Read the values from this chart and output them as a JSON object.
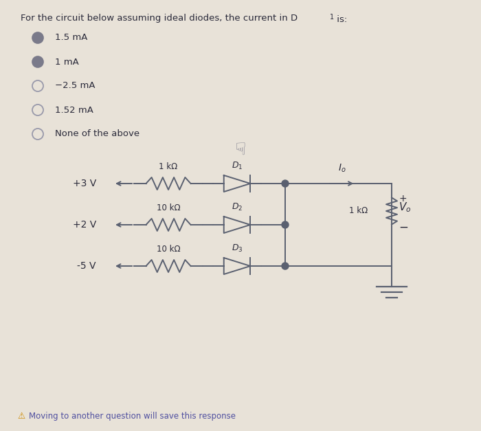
{
  "bg_color": "#e8e2d8",
  "title": "For the circuit below assuming ideal diodes, the current in D",
  "title2": " is:",
  "options": [
    "1.5 mA",
    "1 mA",
    "−2.5 mA",
    "1.52 mA",
    "None of the above"
  ],
  "option_filled": [
    true,
    true,
    false,
    false,
    false
  ],
  "option_colors": [
    "#7a7a8a",
    "#7a7a8a",
    "#c0c0c8",
    "#c0c0c8",
    "#c0c0c8"
  ],
  "footer": "Moving to another question will save this response",
  "circuit_color": "#5a6070",
  "text_color": "#2a2a3a"
}
